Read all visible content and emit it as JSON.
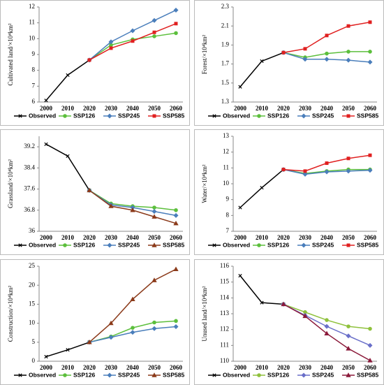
{
  "chart_data": [
    {
      "type": "line",
      "y_label": "Cultivated land/×10⁴km²",
      "categories": [
        "2000",
        "2010",
        "2020",
        "2030",
        "2040",
        "2050",
        "2060"
      ],
      "ylim": [
        6,
        12
      ],
      "yticks": [
        6,
        7,
        8,
        9,
        10,
        11,
        12
      ],
      "series": [
        {
          "name": "Observed",
          "color": "#000000",
          "marker": "x",
          "values": [
            6.1,
            7.7,
            8.65,
            null,
            null,
            null,
            null
          ]
        },
        {
          "name": "SSP126",
          "color": "#5cbf3c",
          "marker": "circle",
          "values": [
            null,
            null,
            8.65,
            9.6,
            9.95,
            10.15,
            10.35
          ]
        },
        {
          "name": "SSP245",
          "color": "#4a7ebb",
          "marker": "diamond",
          "values": [
            null,
            null,
            8.65,
            9.8,
            10.5,
            11.15,
            11.8
          ]
        },
        {
          "name": "SSP585",
          "color": "#e02020",
          "marker": "square",
          "values": [
            null,
            null,
            8.65,
            9.4,
            9.85,
            10.4,
            10.95
          ]
        }
      ]
    },
    {
      "type": "line",
      "y_label": "Forest/×10⁴km²",
      "categories": [
        "2000",
        "2010",
        "2020",
        "2030",
        "2040",
        "2050",
        "2060"
      ],
      "ylim": [
        1.3,
        2.3
      ],
      "yticks": [
        1.3,
        1.5,
        1.7,
        1.9,
        2.1,
        2.3
      ],
      "series": [
        {
          "name": "Observed",
          "color": "#000000",
          "marker": "x",
          "values": [
            1.46,
            1.73,
            1.82,
            null,
            null,
            null,
            null
          ]
        },
        {
          "name": "SSP126",
          "color": "#5cbf3c",
          "marker": "circle",
          "values": [
            null,
            null,
            1.82,
            1.77,
            1.81,
            1.83,
            1.83
          ]
        },
        {
          "name": "SSP245",
          "color": "#4a7ebb",
          "marker": "diamond",
          "values": [
            null,
            null,
            1.82,
            1.75,
            1.75,
            1.74,
            1.72
          ]
        },
        {
          "name": "SSP585",
          "color": "#e02020",
          "marker": "square",
          "values": [
            null,
            null,
            1.82,
            1.86,
            2.0,
            2.1,
            2.14
          ]
        }
      ]
    },
    {
      "type": "line",
      "y_label": "Grassland/×10⁴km²",
      "categories": [
        "2000",
        "2010",
        "2020",
        "2030",
        "2040",
        "2050",
        "2060"
      ],
      "ylim": [
        36,
        39.6
      ],
      "yticks": [
        36,
        36.8,
        37.6,
        38.4,
        39.2
      ],
      "series": [
        {
          "name": "Observed",
          "color": "#000000",
          "marker": "x",
          "values": [
            39.3,
            38.85,
            37.55,
            null,
            null,
            null,
            null
          ]
        },
        {
          "name": "SSP126",
          "color": "#5cbf3c",
          "marker": "circle",
          "values": [
            null,
            null,
            37.55,
            37.05,
            36.95,
            36.9,
            36.8
          ]
        },
        {
          "name": "SSP245",
          "color": "#4a7ebb",
          "marker": "diamond",
          "values": [
            null,
            null,
            37.55,
            37.0,
            36.9,
            36.75,
            36.6
          ]
        },
        {
          "name": "SSP585",
          "color": "#8b3a1a",
          "marker": "triangle",
          "values": [
            null,
            null,
            37.55,
            36.95,
            36.8,
            36.55,
            36.3
          ]
        }
      ]
    },
    {
      "type": "line",
      "y_label": "Water/×10⁴km²",
      "categories": [
        "2000",
        "2010",
        "2020",
        "2030",
        "2040",
        "2050",
        "2060"
      ],
      "ylim": [
        7,
        13
      ],
      "yticks": [
        7,
        8,
        9,
        10,
        11,
        12,
        13
      ],
      "series": [
        {
          "name": "Observed",
          "color": "#000000",
          "marker": "x",
          "values": [
            8.5,
            9.75,
            10.9,
            null,
            null,
            null,
            null
          ]
        },
        {
          "name": "SSP126",
          "color": "#5cbf3c",
          "marker": "circle",
          "values": [
            null,
            null,
            10.9,
            10.65,
            10.8,
            10.9,
            10.9
          ]
        },
        {
          "name": "SSP245",
          "color": "#4a7ebb",
          "marker": "diamond",
          "values": [
            null,
            null,
            10.9,
            10.6,
            10.75,
            10.8,
            10.85
          ]
        },
        {
          "name": "SSP585",
          "color": "#e02020",
          "marker": "square",
          "values": [
            null,
            null,
            10.9,
            10.8,
            11.3,
            11.6,
            11.8
          ]
        }
      ]
    },
    {
      "type": "line",
      "y_label": "Construction/×10⁴km²",
      "categories": [
        "2000",
        "2010",
        "2020",
        "2030",
        "2040",
        "2050",
        "2060"
      ],
      "ylim": [
        0,
        25
      ],
      "yticks": [
        0,
        5,
        10,
        15,
        20,
        25
      ],
      "series": [
        {
          "name": "Observed",
          "color": "#000000",
          "marker": "x",
          "values": [
            1.2,
            3.0,
            5.0,
            null,
            null,
            null,
            null
          ]
        },
        {
          "name": "SSP126",
          "color": "#5cbf3c",
          "marker": "circle",
          "values": [
            null,
            null,
            5.0,
            6.5,
            8.8,
            10.2,
            10.6
          ]
        },
        {
          "name": "SSP245",
          "color": "#4a7ebb",
          "marker": "diamond",
          "values": [
            null,
            null,
            5.0,
            6.3,
            7.6,
            8.6,
            9.1
          ]
        },
        {
          "name": "SSP585",
          "color": "#8b3a1a",
          "marker": "triangle",
          "values": [
            null,
            null,
            5.0,
            10.0,
            16.3,
            21.3,
            24.2
          ]
        }
      ]
    },
    {
      "type": "line",
      "y_label": "Unused land/×10⁴km²",
      "categories": [
        "2000",
        "2010",
        "2020",
        "2030",
        "2040",
        "2050",
        "2060"
      ],
      "ylim": [
        110,
        116
      ],
      "yticks": [
        110,
        111,
        112,
        113,
        114,
        115,
        116
      ],
      "series": [
        {
          "name": "Observed",
          "color": "#000000",
          "marker": "x",
          "values": [
            115.4,
            113.7,
            113.6,
            null,
            null,
            null,
            null
          ]
        },
        {
          "name": "SSP126",
          "color": "#8fc13c",
          "marker": "circle",
          "values": [
            null,
            null,
            113.6,
            113.1,
            112.6,
            112.2,
            112.05
          ]
        },
        {
          "name": "SSP245",
          "color": "#6a6fc9",
          "marker": "diamond",
          "values": [
            null,
            null,
            113.6,
            112.9,
            112.2,
            111.6,
            111.0
          ]
        },
        {
          "name": "SSP585",
          "color": "#8b1a3a",
          "marker": "triangle",
          "values": [
            null,
            null,
            113.6,
            112.85,
            111.75,
            110.8,
            110.05
          ]
        }
      ]
    }
  ]
}
